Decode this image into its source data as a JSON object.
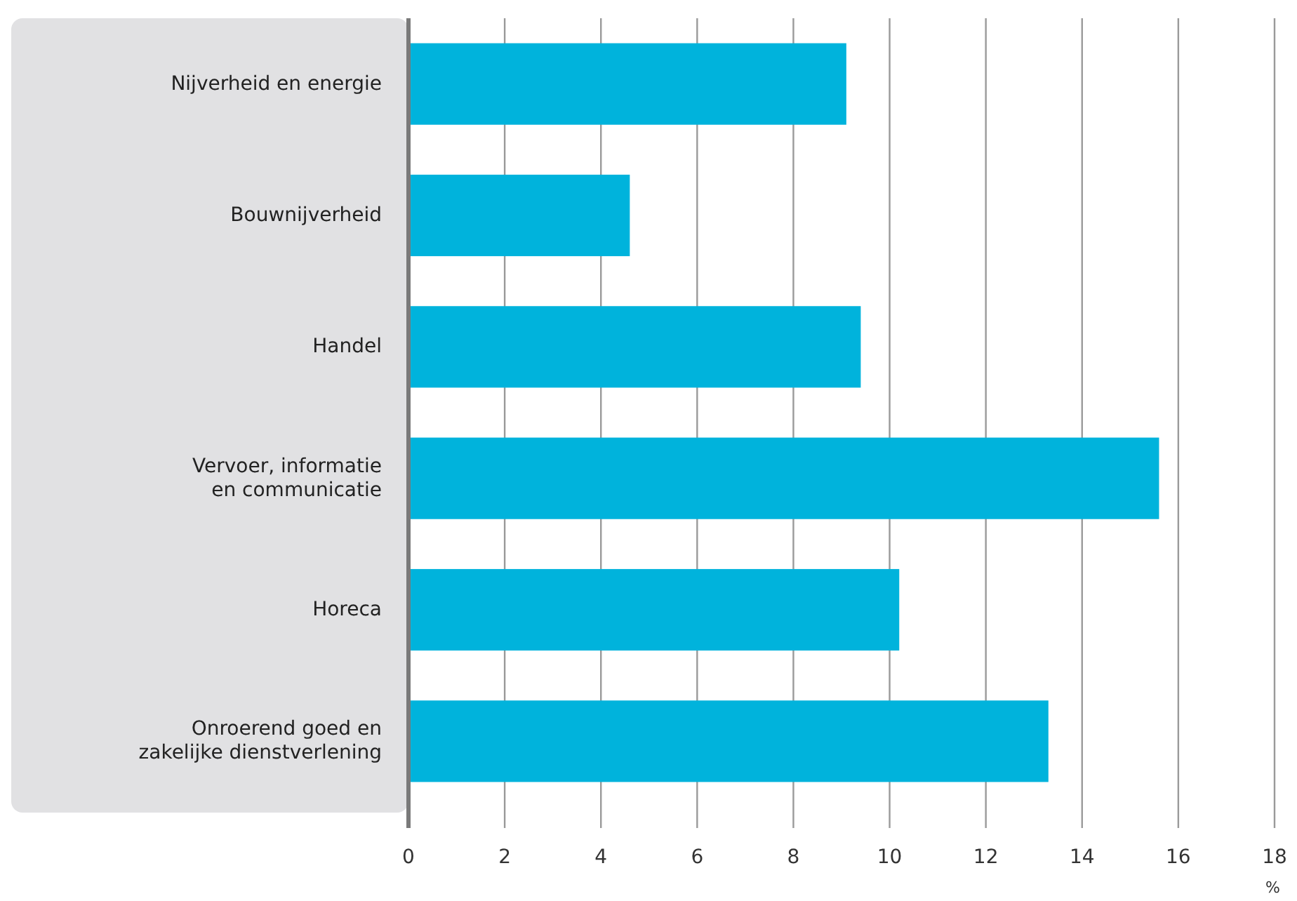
{
  "chart_data": {
    "type": "bar",
    "orientation": "horizontal",
    "xlabel": "%",
    "categories": [
      "Nijverheid en energie",
      "Bouwnijverheid",
      "Handel",
      "Vervoer, informatie\nen communicatie",
      "Horeca",
      "Onroerend goed en\nzakelijke dienstverlening"
    ],
    "values": [
      9.1,
      4.6,
      9.4,
      15.6,
      10.2,
      13.3
    ],
    "color": "#00b3dc",
    "xlim": [
      0,
      18
    ],
    "xticks": [
      0,
      2,
      4,
      6,
      8,
      10,
      12,
      14,
      16,
      18
    ],
    "grid": "x"
  }
}
